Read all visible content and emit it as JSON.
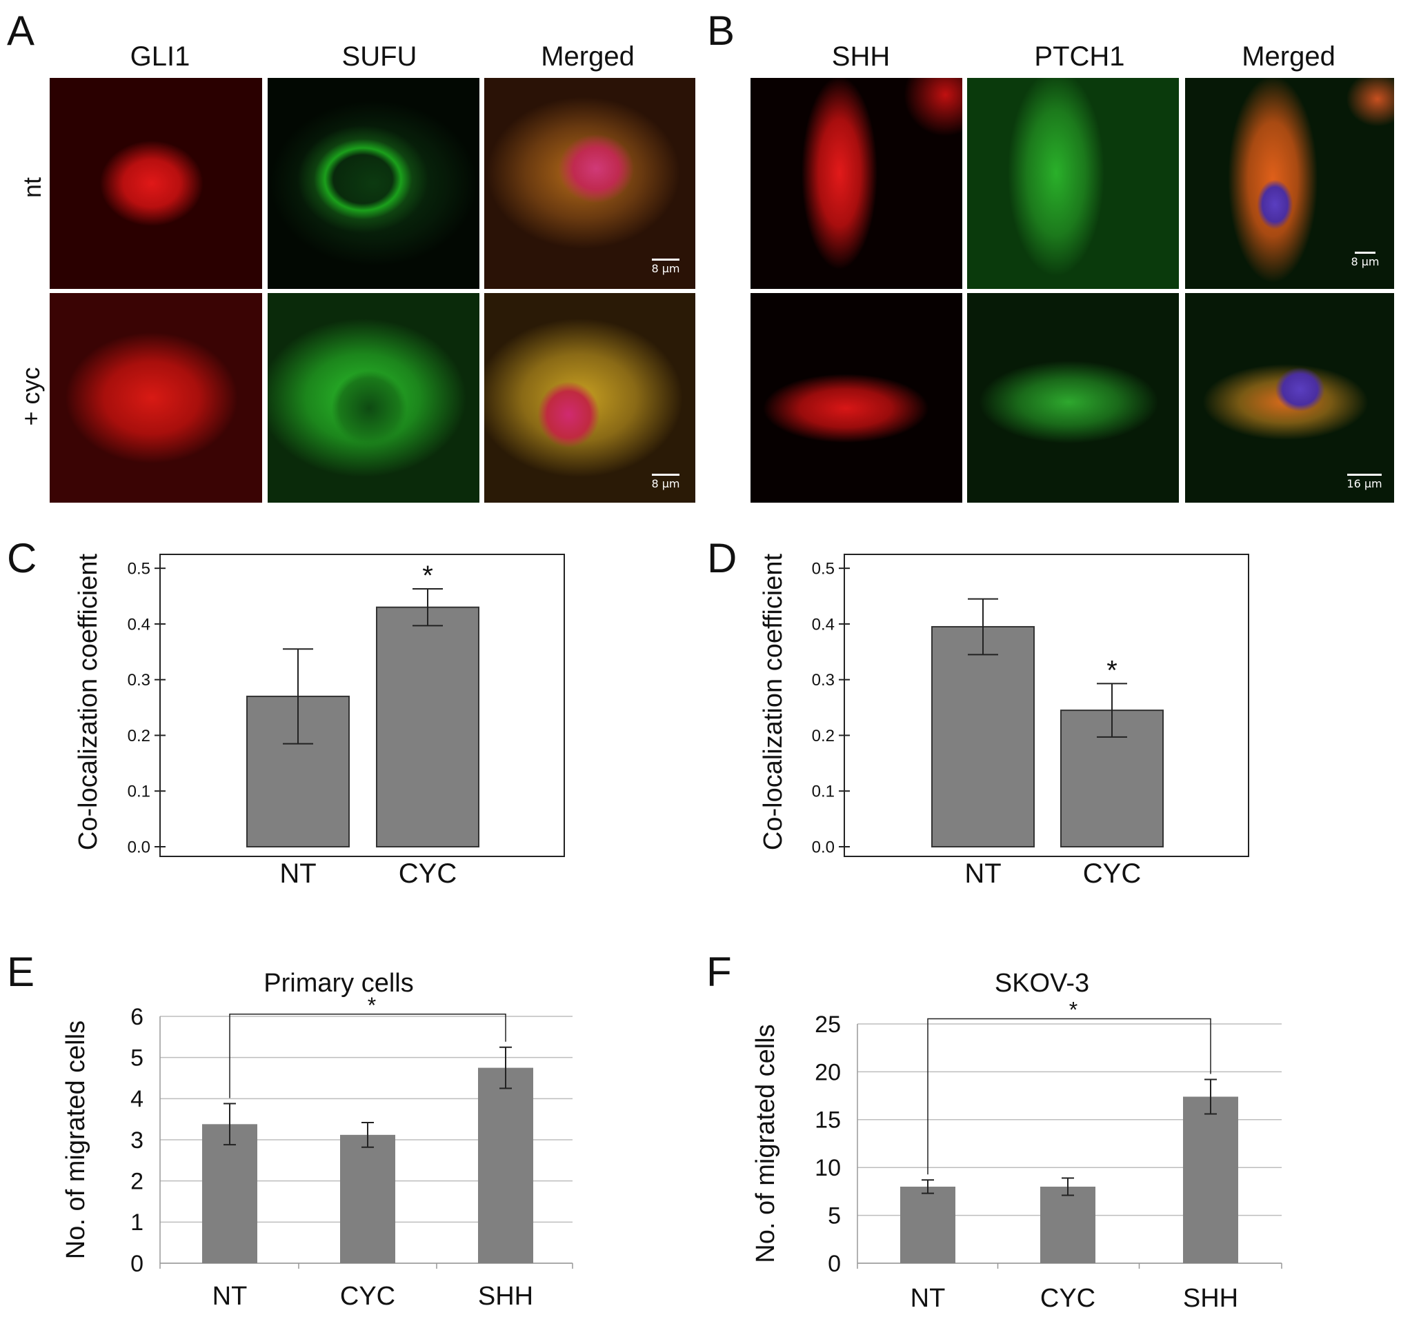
{
  "panels": {
    "A": {
      "letter": "A",
      "columns": [
        "GLI1",
        "SUFU",
        "Merged"
      ],
      "rows": [
        "nt",
        "+ cyc"
      ],
      "scale_bars": [
        "8 µm",
        "8 µm"
      ]
    },
    "B": {
      "letter": "B",
      "columns": [
        "SHH",
        "PTCH1",
        "Merged"
      ],
      "scale_bars": [
        "8 µm",
        "16 µm"
      ]
    }
  },
  "chart_data": [
    {
      "id": "C",
      "letter": "C",
      "type": "bar",
      "categories": [
        "NT",
        "CYC"
      ],
      "values": [
        0.27,
        0.43
      ],
      "errors": [
        0.085,
        0.033
      ],
      "significance": [
        "",
        "*"
      ],
      "ylabel": "Co-localization coefficient",
      "ylim": [
        0,
        0.52
      ],
      "yticks": [
        "0.0",
        "0.1",
        "0.2",
        "0.3",
        "0.4",
        "0.5"
      ],
      "grid": false,
      "bar_color": "#808080"
    },
    {
      "id": "D",
      "letter": "D",
      "type": "bar",
      "categories": [
        "NT",
        "CYC"
      ],
      "values": [
        0.395,
        0.245
      ],
      "errors": [
        0.05,
        0.048
      ],
      "significance": [
        "",
        "*"
      ],
      "ylabel": "Co-localization coefficient",
      "ylim": [
        0,
        0.52
      ],
      "yticks": [
        "0.0",
        "0.1",
        "0.2",
        "0.3",
        "0.4",
        "0.5"
      ],
      "grid": false,
      "bar_color": "#808080"
    },
    {
      "id": "E",
      "letter": "E",
      "type": "bar",
      "title": "Primary cells",
      "categories": [
        "NT",
        "CYC",
        "SHH"
      ],
      "values": [
        3.38,
        3.12,
        4.75
      ],
      "errors": [
        0.5,
        0.3,
        0.5
      ],
      "ylabel": "No. of migrated cells",
      "ylim": [
        0,
        6
      ],
      "yticks": [
        "0",
        "1",
        "2",
        "3",
        "4",
        "5",
        "6"
      ],
      "grid": true,
      "bracket": {
        "from": "NT",
        "to": "SHH",
        "label": "*"
      },
      "bar_color": "#808080"
    },
    {
      "id": "F",
      "letter": "F",
      "type": "bar",
      "title": "SKOV-3",
      "categories": [
        "NT",
        "CYC",
        "SHH"
      ],
      "values": [
        8.0,
        8.0,
        17.4
      ],
      "errors": [
        0.7,
        0.9,
        1.8
      ],
      "ylabel": "No. of migrated cells",
      "ylim": [
        0,
        25
      ],
      "yticks": [
        "0",
        "5",
        "10",
        "15",
        "20",
        "25"
      ],
      "grid": true,
      "bracket": {
        "from": "NT",
        "to": "SHH",
        "label": "*"
      },
      "bar_color": "#808080"
    }
  ]
}
